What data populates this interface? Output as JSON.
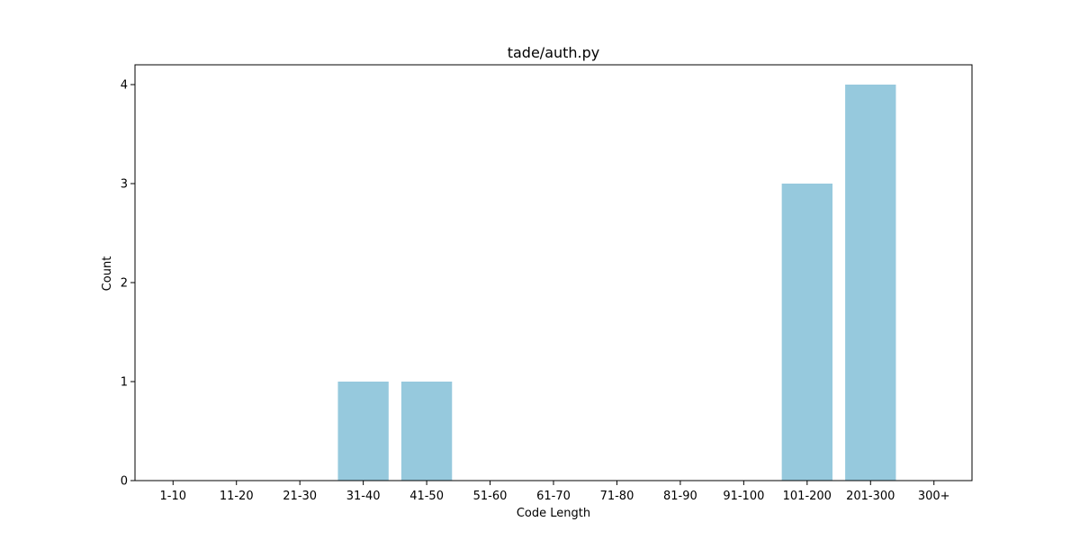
{
  "chart_data": {
    "type": "bar",
    "title": "tade/auth.py",
    "xlabel": "Code Length",
    "ylabel": "Count",
    "categories": [
      "1-10",
      "11-20",
      "21-30",
      "31-40",
      "41-50",
      "51-60",
      "61-70",
      "71-80",
      "81-90",
      "91-100",
      "101-200",
      "201-300",
      "300+"
    ],
    "values": [
      0,
      0,
      0,
      1,
      1,
      0,
      0,
      0,
      0,
      0,
      3,
      4,
      0
    ],
    "ylim": [
      0,
      4.2
    ],
    "yticks": [
      0,
      1,
      2,
      3,
      4
    ],
    "grid": false,
    "legend": null,
    "colors": {
      "bar": "#96c9dd",
      "axis": "#000000",
      "background": "#ffffff"
    }
  }
}
